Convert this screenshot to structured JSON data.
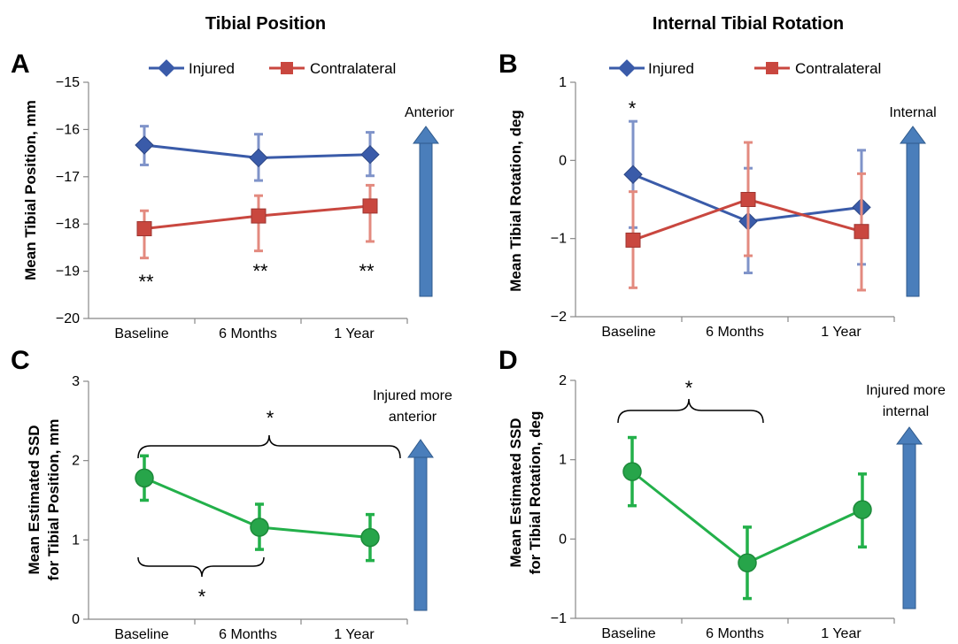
{
  "column_titles": [
    "Tibial Position",
    "Internal Tibial Rotation"
  ],
  "legend": {
    "injured": "Injured",
    "contralateral": "Contralateral"
  },
  "colors": {
    "injured": "#3A5BA9",
    "contralateral": "#C9473F",
    "ssd": "#23B04A",
    "arrow": "#4A7EBB"
  },
  "chart_data": [
    {
      "panel": "A",
      "type": "line",
      "title": "Tibial Position",
      "categories": [
        "Baseline",
        "6 Months",
        "1 Year"
      ],
      "ylabel": "Mean Tibial Position, mm",
      "ylim": [
        -20,
        -15
      ],
      "yticks": [
        "−20",
        "−19",
        "−18",
        "−17",
        "−16",
        "−15"
      ],
      "legend_position": "top",
      "series": [
        {
          "name": "Injured",
          "values": [
            -16.33,
            -16.6,
            -16.53
          ],
          "err_low": [
            -16.75,
            -17.08,
            -16.98
          ],
          "err_high": [
            -15.93,
            -16.1,
            -16.06
          ]
        },
        {
          "name": "Contralateral",
          "values": [
            -18.1,
            -17.83,
            -17.62
          ],
          "err_low": [
            -18.72,
            -18.57,
            -18.37
          ],
          "err_high": [
            -17.72,
            -17.4,
            -17.18
          ]
        }
      ],
      "direction_label": "Anterior",
      "significance": [
        "**",
        "**",
        "**"
      ]
    },
    {
      "panel": "B",
      "type": "line",
      "title": "Internal Tibial Rotation",
      "categories": [
        "Baseline",
        "6 Months",
        "1 Year"
      ],
      "ylabel": "Mean Tibial Rotation, deg",
      "ylim": [
        -2,
        1
      ],
      "yticks": [
        "−2",
        "−1",
        "0",
        "1"
      ],
      "legend_position": "top",
      "series": [
        {
          "name": "Injured",
          "values": [
            -0.18,
            -0.78,
            -0.6
          ],
          "err_low": [
            -0.86,
            -1.44,
            -1.33
          ],
          "err_high": [
            0.5,
            -0.1,
            0.13
          ]
        },
        {
          "name": "Contralateral",
          "values": [
            -1.02,
            -0.5,
            -0.91
          ],
          "err_low": [
            -1.63,
            -1.22,
            -1.66
          ],
          "err_high": [
            -0.4,
            0.23,
            -0.17
          ]
        }
      ],
      "direction_label": "Internal",
      "significance": [
        "*"
      ]
    },
    {
      "panel": "C",
      "type": "line",
      "categories": [
        "Baseline",
        "6 Months",
        "1 Year"
      ],
      "ylabel_line1": "Mean Estimated SSD",
      "ylabel_line2": "for Tibial Position, mm",
      "ylim": [
        0,
        3
      ],
      "yticks": [
        "0",
        "1",
        "2",
        "3"
      ],
      "series": [
        {
          "values": [
            1.78,
            1.16,
            1.03
          ],
          "err_low": [
            1.5,
            0.88,
            0.74
          ],
          "err_high": [
            2.06,
            1.45,
            1.32
          ]
        }
      ],
      "direction_label_line1": "Injured more",
      "direction_label_line2": "anterior",
      "significance": [
        "*",
        "*"
      ]
    },
    {
      "panel": "D",
      "type": "line",
      "categories": [
        "Baseline",
        "6 Months",
        "1 Year"
      ],
      "ylabel_line1": "Mean Estimated SSD",
      "ylabel_line2": "for Tibial Rotation, deg",
      "ylim": [
        -1,
        2
      ],
      "yticks": [
        "−1",
        "0",
        "1",
        "2"
      ],
      "series": [
        {
          "values": [
            0.85,
            -0.3,
            0.37
          ],
          "err_low": [
            0.42,
            -0.75,
            -0.1
          ],
          "err_high": [
            1.28,
            0.15,
            0.82
          ]
        }
      ],
      "direction_label_line1": "Injured more",
      "direction_label_line2": "internal",
      "significance": [
        "*"
      ]
    }
  ]
}
